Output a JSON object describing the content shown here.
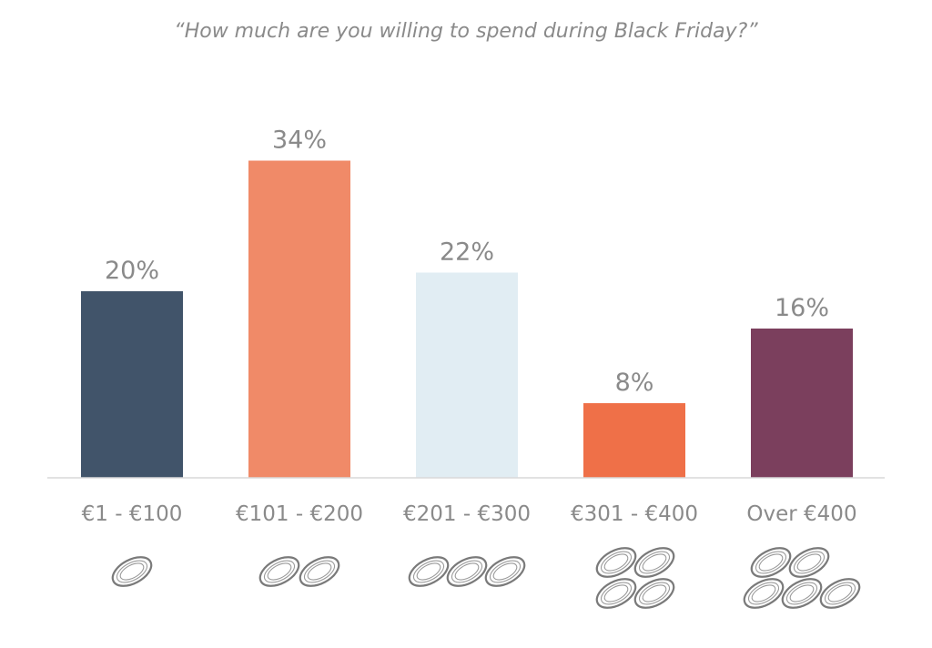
{
  "chart_data": {
    "type": "bar",
    "title": "“How much are you willing to spend during Black Friday?”",
    "categories": [
      "€1 - €100",
      "€101 - €200",
      "€201 - €300",
      "€301 - €400",
      "Over €400"
    ],
    "values": [
      20,
      34,
      22,
      8,
      16
    ],
    "value_labels": [
      "20%",
      "34%",
      "22%",
      "8%",
      "16%"
    ],
    "colors": [
      "#41546a",
      "#f08a68",
      "#e1edf3",
      "#ef7048",
      "#7b3f5d"
    ],
    "coin_counts": [
      1,
      2,
      3,
      4,
      5
    ],
    "ylim": [
      0,
      40
    ],
    "grid": false,
    "legend": "none"
  }
}
